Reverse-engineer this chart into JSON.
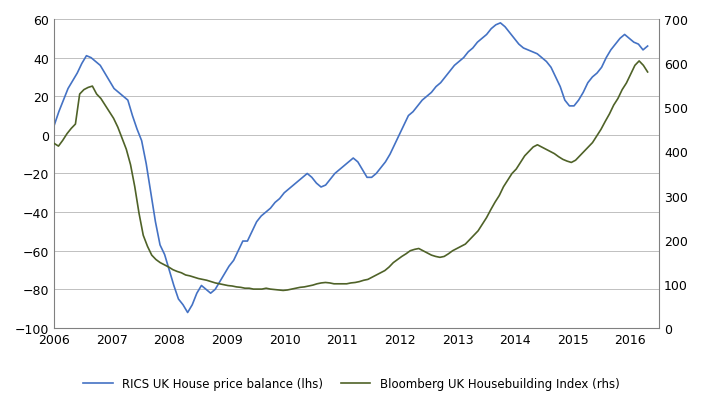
{
  "line1_label": "RICS UK House price balance (lhs)",
  "line2_label": "Bloomberg UK Housebuilding Index (rhs)",
  "line1_color": "#4472C4",
  "line2_color": "#4F6228",
  "background_color": "#FFFFFF",
  "grid_color": "#C0C0C0",
  "ylim_left": [
    -100,
    60
  ],
  "ylim_right": [
    0,
    700
  ],
  "yticks_left": [
    -100,
    -80,
    -60,
    -40,
    -20,
    0,
    20,
    40,
    60
  ],
  "yticks_right": [
    0,
    100,
    200,
    300,
    400,
    500,
    600,
    700
  ],
  "xtick_positions": [
    2006,
    2007,
    2008,
    2009,
    2010,
    2011,
    2012,
    2013,
    2014,
    2015,
    2016
  ],
  "xtick_labels": [
    "2006",
    "2007",
    "2008",
    "2009",
    "2010",
    "2011",
    "2012",
    "2013",
    "2014",
    "2015",
    "2016"
  ],
  "xlim": [
    2006.0,
    2016.5
  ],
  "rics_data": [
    5,
    12,
    18,
    24,
    28,
    32,
    37,
    41,
    40,
    38,
    36,
    32,
    28,
    24,
    22,
    20,
    18,
    10,
    3,
    -3,
    -15,
    -30,
    -45,
    -57,
    -62,
    -70,
    -78,
    -85,
    -88,
    -92,
    -88,
    -82,
    -78,
    -80,
    -82,
    -80,
    -76,
    -72,
    -68,
    -65,
    -60,
    -55,
    -55,
    -50,
    -45,
    -42,
    -40,
    -38,
    -35,
    -33,
    -30,
    -28,
    -26,
    -24,
    -22,
    -20,
    -22,
    -25,
    -27,
    -26,
    -23,
    -20,
    -18,
    -16,
    -14,
    -12,
    -14,
    -18,
    -22,
    -22,
    -20,
    -17,
    -14,
    -10,
    -5,
    0,
    5,
    10,
    12,
    15,
    18,
    20,
    22,
    25,
    27,
    30,
    33,
    36,
    38,
    40,
    43,
    45,
    48,
    50,
    52,
    55,
    57,
    58,
    56,
    53,
    50,
    47,
    45,
    44,
    43,
    42,
    40,
    38,
    35,
    30,
    25,
    18,
    15,
    15,
    18,
    22,
    27,
    30,
    32,
    35,
    40,
    44,
    47,
    50,
    52,
    50,
    48,
    47,
    44,
    46
  ],
  "bloomberg_data": [
    418,
    412,
    425,
    440,
    452,
    462,
    530,
    540,
    545,
    548,
    530,
    520,
    505,
    490,
    475,
    455,
    430,
    405,
    370,
    320,
    260,
    210,
    185,
    165,
    155,
    148,
    143,
    138,
    132,
    128,
    125,
    120,
    118,
    115,
    112,
    110,
    108,
    105,
    102,
    100,
    98,
    96,
    95,
    93,
    92,
    90,
    90,
    88,
    88,
    88,
    90,
    88,
    87,
    86,
    85,
    86,
    88,
    90,
    92,
    93,
    95,
    97,
    100,
    102,
    103,
    102,
    100,
    100,
    100,
    100,
    102,
    103,
    105,
    108,
    110,
    115,
    120,
    125,
    130,
    138,
    148,
    155,
    162,
    168,
    175,
    178,
    180,
    175,
    170,
    165,
    162,
    160,
    162,
    168,
    175,
    180,
    185,
    190,
    200,
    210,
    220,
    235,
    250,
    268,
    285,
    300,
    320,
    335,
    350,
    360,
    375,
    390,
    400,
    410,
    415,
    410,
    405,
    400,
    395,
    388,
    382,
    378,
    375,
    380,
    390,
    400,
    410,
    420,
    435,
    450,
    468,
    485,
    505,
    520,
    540,
    555,
    575,
    595,
    605,
    595,
    580
  ]
}
